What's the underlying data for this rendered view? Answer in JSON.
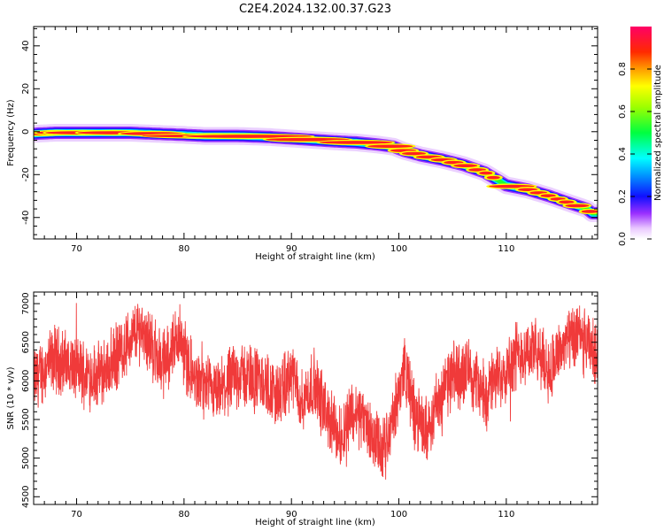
{
  "title": "C2E4.2024.132.00.37.G23",
  "chart_data": [
    {
      "type": "heatmap",
      "xlabel": "Height of straight line (km)",
      "ylabel": "Frequency (Hz)",
      "xlim": [
        66,
        118.5
      ],
      "ylim": [
        -50,
        49
      ],
      "x_ticks": [
        70,
        80,
        90,
        100,
        110
      ],
      "y_ticks": [
        -40,
        -20,
        0,
        20,
        40
      ],
      "ridge": {
        "x": [
          66,
          68,
          70,
          75,
          80,
          82,
          85,
          88,
          91,
          94,
          96,
          98,
          99.5,
          100.5,
          102,
          104,
          106,
          108,
          110,
          112,
          114,
          116,
          117.5,
          118
        ],
        "y": [
          -1,
          -0.5,
          -0.5,
          -0.5,
          -1.5,
          -2,
          -2,
          -2.5,
          -3.5,
          -4.5,
          -5,
          -6,
          -7,
          -9,
          -11,
          -13,
          -15.5,
          -19,
          -25,
          -27,
          -30,
          -33.5,
          -36,
          -38
        ]
      },
      "colorbar": {
        "label": "Normalized spectral amplitude",
        "ticks": [
          "0.0",
          "0.2",
          "0.4",
          "0.6",
          "0.8"
        ],
        "range": [
          0,
          1
        ]
      }
    },
    {
      "type": "line",
      "xlabel": "Height of straight line (km)",
      "ylabel": "SNR (10 * v/v)",
      "xlim": [
        66,
        118.5
      ],
      "ylim": [
        4400,
        7150
      ],
      "x_ticks": [
        70,
        80,
        90,
        100,
        110
      ],
      "y_ticks": [
        4500,
        5000,
        5500,
        6000,
        6500,
        7000
      ],
      "color": "#f03a3a",
      "baseline": {
        "x": [
          66,
          68,
          70,
          72,
          74,
          76,
          78,
          79.5,
          81,
          83,
          85,
          87,
          89,
          90,
          91,
          92,
          93,
          94.5,
          95.5,
          96.5,
          97.5,
          98.5,
          99.5,
          100.5,
          101.5,
          102.5,
          103.5,
          105,
          106.5,
          108,
          109.5,
          111,
          112.5,
          114,
          115.5,
          117,
          118.5
        ],
        "y": [
          6000,
          6300,
          6150,
          6050,
          6350,
          6700,
          6200,
          6600,
          6000,
          5800,
          6100,
          6000,
          5800,
          6100,
          5700,
          6000,
          5650,
          5250,
          5600,
          5550,
          5300,
          5050,
          5500,
          6200,
          5550,
          5350,
          5700,
          6050,
          6150,
          5800,
          6100,
          6350,
          6400,
          6150,
          6500,
          6550,
          6300
        ]
      }
    }
  ]
}
